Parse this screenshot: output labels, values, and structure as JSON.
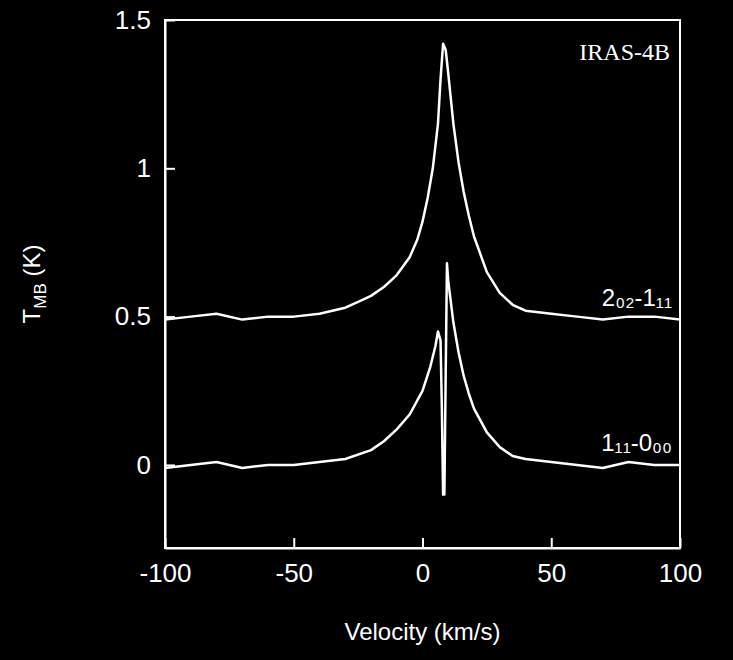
{
  "chart_data": {
    "type": "line",
    "title": "IRAS-4B",
    "x_label": "Velocity (km/s)",
    "y_label": "TMB (K)",
    "xlim": [
      -100,
      100
    ],
    "xticks": [
      -100,
      -50,
      0,
      50,
      100
    ],
    "ylim": [
      -0.28,
      1.5
    ],
    "yticks": [
      0,
      0.5,
      1,
      1.5
    ],
    "grid": false,
    "series": [
      {
        "name": "2₀₂-1₁₁",
        "color": "#ffffff",
        "x": [
          -100,
          -90,
          -80,
          -70,
          -60,
          -50,
          -40,
          -30,
          -25,
          -20,
          -15,
          -10,
          -5,
          -2,
          0,
          2,
          4,
          6,
          7,
          8,
          9,
          10,
          12,
          14,
          16,
          18,
          20,
          25,
          30,
          35,
          40,
          50,
          60,
          70,
          80,
          90,
          100
        ],
        "values": [
          0.49,
          0.5,
          0.51,
          0.49,
          0.5,
          0.5,
          0.51,
          0.53,
          0.55,
          0.57,
          0.6,
          0.64,
          0.7,
          0.76,
          0.82,
          0.9,
          1.0,
          1.15,
          1.3,
          1.42,
          1.4,
          1.32,
          1.15,
          1.02,
          0.92,
          0.84,
          0.77,
          0.65,
          0.58,
          0.54,
          0.52,
          0.51,
          0.5,
          0.49,
          0.5,
          0.5,
          0.49
        ]
      },
      {
        "name": "1₁₁-0₀₀",
        "color": "#ffffff",
        "x": [
          -100,
          -90,
          -80,
          -70,
          -60,
          -50,
          -40,
          -30,
          -20,
          -15,
          -10,
          -5,
          0,
          3,
          5,
          6,
          7,
          7.5,
          8,
          8.5,
          9,
          9.5,
          10,
          11,
          12,
          14,
          16,
          18,
          20,
          25,
          30,
          35,
          40,
          50,
          60,
          70,
          80,
          90,
          100
        ],
        "values": [
          -0.01,
          0,
          0.01,
          -0.01,
          0,
          0,
          0.01,
          0.02,
          0.05,
          0.08,
          0.12,
          0.17,
          0.25,
          0.33,
          0.4,
          0.45,
          0.42,
          0.2,
          -0.1,
          -0.1,
          0.3,
          0.68,
          0.62,
          0.55,
          0.48,
          0.38,
          0.3,
          0.24,
          0.19,
          0.11,
          0.06,
          0.03,
          0.02,
          0.01,
          0,
          -0.01,
          0.01,
          0,
          0
        ]
      }
    ]
  }
}
